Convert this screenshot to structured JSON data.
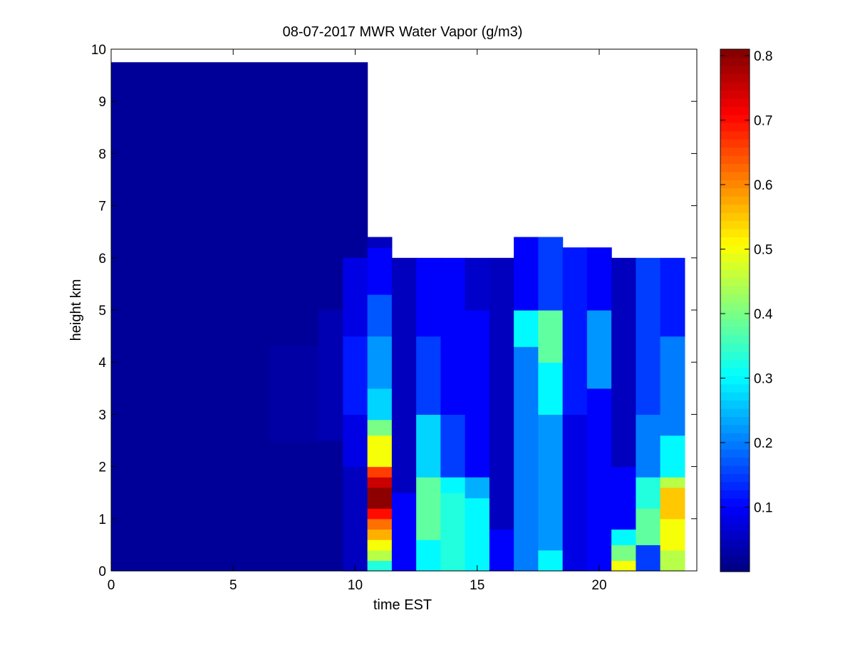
{
  "chart_data": {
    "type": "heatmap",
    "title": "08-07-2017 MWR Water Vapor (g/m3)",
    "xlabel": "time EST",
    "ylabel": "height km",
    "xlim": [
      0,
      24
    ],
    "ylim": [
      0,
      10
    ],
    "xticks": [
      0,
      5,
      10,
      15,
      20
    ],
    "yticks": [
      0,
      1,
      2,
      3,
      4,
      5,
      6,
      7,
      8,
      9,
      10
    ],
    "colorbar": {
      "colormap": "jet",
      "range": [
        0.0,
        0.81
      ],
      "ticks": [
        0.1,
        0.2,
        0.3,
        0.4,
        0.5,
        0.6,
        0.7,
        0.8
      ]
    },
    "data_extent": {
      "x_end": 23.5,
      "y_top": 9.75
    },
    "time_bins": [
      {
        "start": 0,
        "end": 10.5,
        "profile": [
          [
            0,
            9.75,
            0.02
          ]
        ]
      },
      {
        "start": 6.5,
        "end": 8.5,
        "profile": [
          [
            2.5,
            4.3,
            0.03
          ]
        ]
      },
      {
        "start": 8.5,
        "end": 9.5,
        "profile": [
          [
            2.5,
            5.0,
            0.04
          ]
        ]
      },
      {
        "start": 9.5,
        "end": 10.5,
        "profile": [
          [
            0,
            2.0,
            0.05
          ],
          [
            2.0,
            3.0,
            0.08
          ],
          [
            3.0,
            4.5,
            0.12
          ],
          [
            4.5,
            6.0,
            0.08
          ]
        ]
      },
      {
        "start": 10.5,
        "end": 11.5,
        "profile": [
          [
            0,
            0.2,
            0.33
          ],
          [
            0.2,
            0.4,
            0.45
          ],
          [
            0.4,
            0.6,
            0.5
          ],
          [
            0.6,
            0.8,
            0.57
          ],
          [
            0.8,
            1.0,
            0.62
          ],
          [
            1.0,
            1.2,
            0.7
          ],
          [
            1.2,
            1.6,
            0.8
          ],
          [
            1.6,
            1.8,
            0.75
          ],
          [
            1.8,
            2.0,
            0.66
          ],
          [
            2.0,
            2.6,
            0.5
          ],
          [
            2.6,
            2.9,
            0.4
          ],
          [
            2.9,
            3.5,
            0.27
          ],
          [
            3.5,
            4.5,
            0.22
          ],
          [
            4.5,
            5.3,
            0.17
          ],
          [
            5.3,
            6.2,
            0.1
          ],
          [
            6.2,
            6.4,
            0.05
          ]
        ]
      },
      {
        "start": 11.5,
        "end": 12.5,
        "profile": [
          [
            0,
            1.5,
            0.1
          ],
          [
            1.5,
            6.0,
            0.05
          ]
        ]
      },
      {
        "start": 12.5,
        "end": 13.5,
        "profile": [
          [
            0,
            0.6,
            0.3
          ],
          [
            0.6,
            1.8,
            0.38
          ],
          [
            1.8,
            3.0,
            0.27
          ],
          [
            3.0,
            4.5,
            0.15
          ],
          [
            4.5,
            6.0,
            0.1
          ]
        ]
      },
      {
        "start": 13.5,
        "end": 14.5,
        "profile": [
          [
            0,
            0.6,
            0.33
          ],
          [
            0.6,
            1.5,
            0.33
          ],
          [
            1.5,
            1.8,
            0.3
          ],
          [
            1.8,
            3.0,
            0.15
          ],
          [
            3.0,
            6.0,
            0.1
          ]
        ]
      },
      {
        "start": 14.5,
        "end": 15.5,
        "profile": [
          [
            0,
            1.4,
            0.3
          ],
          [
            1.4,
            1.8,
            0.24
          ],
          [
            1.8,
            5.0,
            0.1
          ],
          [
            5.0,
            6.0,
            0.06
          ]
        ]
      },
      {
        "start": 15.5,
        "end": 16.5,
        "profile": [
          [
            0,
            0.8,
            0.1
          ],
          [
            0.8,
            6.0,
            0.05
          ]
        ]
      },
      {
        "start": 16.5,
        "end": 17.5,
        "profile": [
          [
            0,
            2.0,
            0.2
          ],
          [
            2.0,
            4.3,
            0.2
          ],
          [
            4.3,
            5.0,
            0.3
          ],
          [
            5.0,
            6.4,
            0.1
          ]
        ]
      },
      {
        "start": 17.5,
        "end": 18.5,
        "profile": [
          [
            0,
            0.4,
            0.3
          ],
          [
            0.4,
            3.0,
            0.22
          ],
          [
            3.0,
            4.0,
            0.3
          ],
          [
            4.0,
            5.0,
            0.38
          ],
          [
            5.0,
            6.4,
            0.15
          ]
        ]
      },
      {
        "start": 18.5,
        "end": 19.5,
        "profile": [
          [
            0,
            3.0,
            0.08
          ],
          [
            3.0,
            6.2,
            0.12
          ]
        ]
      },
      {
        "start": 19.5,
        "end": 20.5,
        "profile": [
          [
            0,
            1.5,
            0.1
          ],
          [
            1.5,
            3.5,
            0.1
          ],
          [
            3.5,
            5.0,
            0.22
          ],
          [
            5.0,
            6.2,
            0.1
          ]
        ]
      },
      {
        "start": 20.5,
        "end": 21.5,
        "profile": [
          [
            0,
            0.2,
            0.5
          ],
          [
            0.2,
            0.5,
            0.4
          ],
          [
            0.5,
            0.8,
            0.3
          ],
          [
            0.8,
            2.0,
            0.1
          ],
          [
            2.0,
            6.0,
            0.05
          ]
        ]
      },
      {
        "start": 21.5,
        "end": 22.5,
        "profile": [
          [
            0,
            0.5,
            0.15
          ],
          [
            0.5,
            1.2,
            0.38
          ],
          [
            1.2,
            1.8,
            0.33
          ],
          [
            1.8,
            3.0,
            0.2
          ],
          [
            3.0,
            6.0,
            0.15
          ]
        ]
      },
      {
        "start": 22.5,
        "end": 23.5,
        "profile": [
          [
            0,
            0.4,
            0.45
          ],
          [
            0.4,
            1.0,
            0.5
          ],
          [
            1.0,
            1.6,
            0.55
          ],
          [
            1.6,
            1.8,
            0.45
          ],
          [
            1.8,
            2.6,
            0.3
          ],
          [
            2.6,
            4.5,
            0.2
          ],
          [
            4.5,
            6.0,
            0.12
          ]
        ]
      }
    ]
  }
}
